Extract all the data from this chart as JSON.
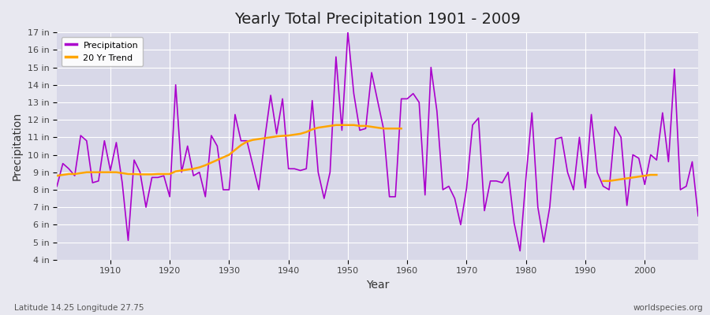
{
  "title": "Yearly Total Precipitation 1901 - 2009",
  "xlabel": "Year",
  "ylabel": "Precipitation",
  "subtitle_left": "Latitude 14.25 Longitude 27.75",
  "subtitle_right": "worldspecies.org",
  "line_color": "#AA00CC",
  "trend_color": "#FFA500",
  "fig_bg_color": "#E8E8F0",
  "plot_bg_color": "#D8D8E8",
  "ylim": [
    4,
    17
  ],
  "ytick_labels": [
    "4 in",
    "5 in",
    "6 in",
    "7 in",
    "8 in",
    "9 in",
    "10 in",
    "11 in",
    "12 in",
    "13 in",
    "14 in",
    "15 in",
    "16 in",
    "17 in"
  ],
  "ytick_values": [
    4,
    5,
    6,
    7,
    8,
    9,
    10,
    11,
    12,
    13,
    14,
    15,
    16,
    17
  ],
  "xlim": [
    1901,
    2009
  ],
  "xtick_positions": [
    1910,
    1920,
    1930,
    1940,
    1950,
    1960,
    1970,
    1980,
    1990,
    2000
  ],
  "years": [
    1901,
    1902,
    1903,
    1904,
    1905,
    1906,
    1907,
    1908,
    1909,
    1910,
    1911,
    1912,
    1913,
    1914,
    1915,
    1916,
    1917,
    1918,
    1919,
    1920,
    1921,
    1922,
    1923,
    1924,
    1925,
    1926,
    1927,
    1928,
    1929,
    1930,
    1931,
    1932,
    1933,
    1934,
    1935,
    1936,
    1937,
    1938,
    1939,
    1940,
    1941,
    1942,
    1943,
    1944,
    1945,
    1946,
    1947,
    1948,
    1949,
    1950,
    1951,
    1952,
    1953,
    1954,
    1955,
    1956,
    1957,
    1958,
    1959,
    1960,
    1961,
    1962,
    1963,
    1964,
    1965,
    1966,
    1967,
    1968,
    1969,
    1970,
    1971,
    1972,
    1973,
    1974,
    1975,
    1976,
    1977,
    1978,
    1979,
    1980,
    1981,
    1982,
    1983,
    1984,
    1985,
    1986,
    1987,
    1988,
    1989,
    1990,
    1991,
    1992,
    1993,
    1994,
    1995,
    1996,
    1997,
    1998,
    1999,
    2000,
    2001,
    2002,
    2003,
    2004,
    2005,
    2006,
    2007,
    2008,
    2009
  ],
  "precipitation": [
    8.2,
    9.5,
    9.2,
    8.8,
    11.1,
    10.8,
    8.4,
    8.5,
    10.8,
    9.1,
    10.7,
    8.4,
    5.1,
    9.7,
    9.0,
    7.0,
    8.7,
    8.7,
    8.8,
    7.6,
    14.0,
    9.0,
    10.5,
    8.8,
    9.0,
    7.6,
    11.1,
    10.5,
    8.0,
    8.0,
    12.3,
    10.8,
    10.8,
    9.4,
    8.0,
    10.9,
    13.4,
    11.2,
    13.2,
    9.2,
    9.2,
    9.1,
    9.2,
    13.1,
    9.0,
    7.5,
    9.0,
    15.6,
    11.4,
    17.0,
    13.5,
    11.4,
    11.5,
    14.7,
    13.1,
    11.5,
    7.6,
    7.6,
    13.2,
    13.2,
    13.5,
    13.0,
    7.7,
    15.0,
    12.5,
    8.0,
    8.2,
    7.5,
    6.0,
    8.1,
    11.7,
    12.1,
    6.8,
    8.5,
    8.5,
    8.4,
    9.0,
    6.1,
    4.5,
    8.7,
    12.4,
    7.0,
    5.0,
    7.0,
    10.9,
    11.0,
    9.0,
    8.0,
    11.0,
    8.1,
    12.3,
    9.0,
    8.2,
    8.0,
    11.6,
    11.0,
    7.1,
    10.0,
    9.8,
    8.3,
    10.0,
    9.7,
    12.4,
    9.6,
    14.9,
    8.0,
    8.2,
    9.6,
    6.5
  ],
  "trend_segments": [
    {
      "years": [
        1901,
        1902,
        1903,
        1904,
        1905,
        1906,
        1907,
        1908,
        1909,
        1910,
        1911,
        1912,
        1913,
        1914,
        1915,
        1916,
        1917,
        1918,
        1919,
        1920,
        1921,
        1922,
        1923,
        1924,
        1925,
        1926,
        1927,
        1928,
        1929,
        1930,
        1931,
        1932,
        1933,
        1934,
        1935,
        1936,
        1937,
        1938,
        1939,
        1940,
        1941,
        1942,
        1943,
        1944,
        1945,
        1946,
        1947,
        1948,
        1949,
        1950,
        1951,
        1952,
        1953,
        1954,
        1955,
        1956,
        1957,
        1958,
        1959
      ],
      "values": [
        8.8,
        8.85,
        8.9,
        8.9,
        8.95,
        9.0,
        9.0,
        9.0,
        9.0,
        9.0,
        9.0,
        8.95,
        8.9,
        8.9,
        8.88,
        8.88,
        8.88,
        8.9,
        8.9,
        8.9,
        9.05,
        9.1,
        9.15,
        9.2,
        9.28,
        9.4,
        9.55,
        9.7,
        9.85,
        10.0,
        10.28,
        10.55,
        10.75,
        10.85,
        10.9,
        10.95,
        11.0,
        11.05,
        11.08,
        11.1,
        11.15,
        11.2,
        11.3,
        11.45,
        11.55,
        11.6,
        11.65,
        11.7,
        11.7,
        11.7,
        11.7,
        11.65,
        11.65,
        11.6,
        11.55,
        11.5,
        11.5,
        11.5,
        11.5
      ]
    },
    {
      "years": [
        1993,
        1994,
        1995,
        1996,
        1997,
        1998,
        1999,
        2000,
        2001,
        2002
      ],
      "values": [
        8.5,
        8.5,
        8.55,
        8.6,
        8.65,
        8.7,
        8.75,
        8.8,
        8.85,
        8.85
      ]
    }
  ]
}
